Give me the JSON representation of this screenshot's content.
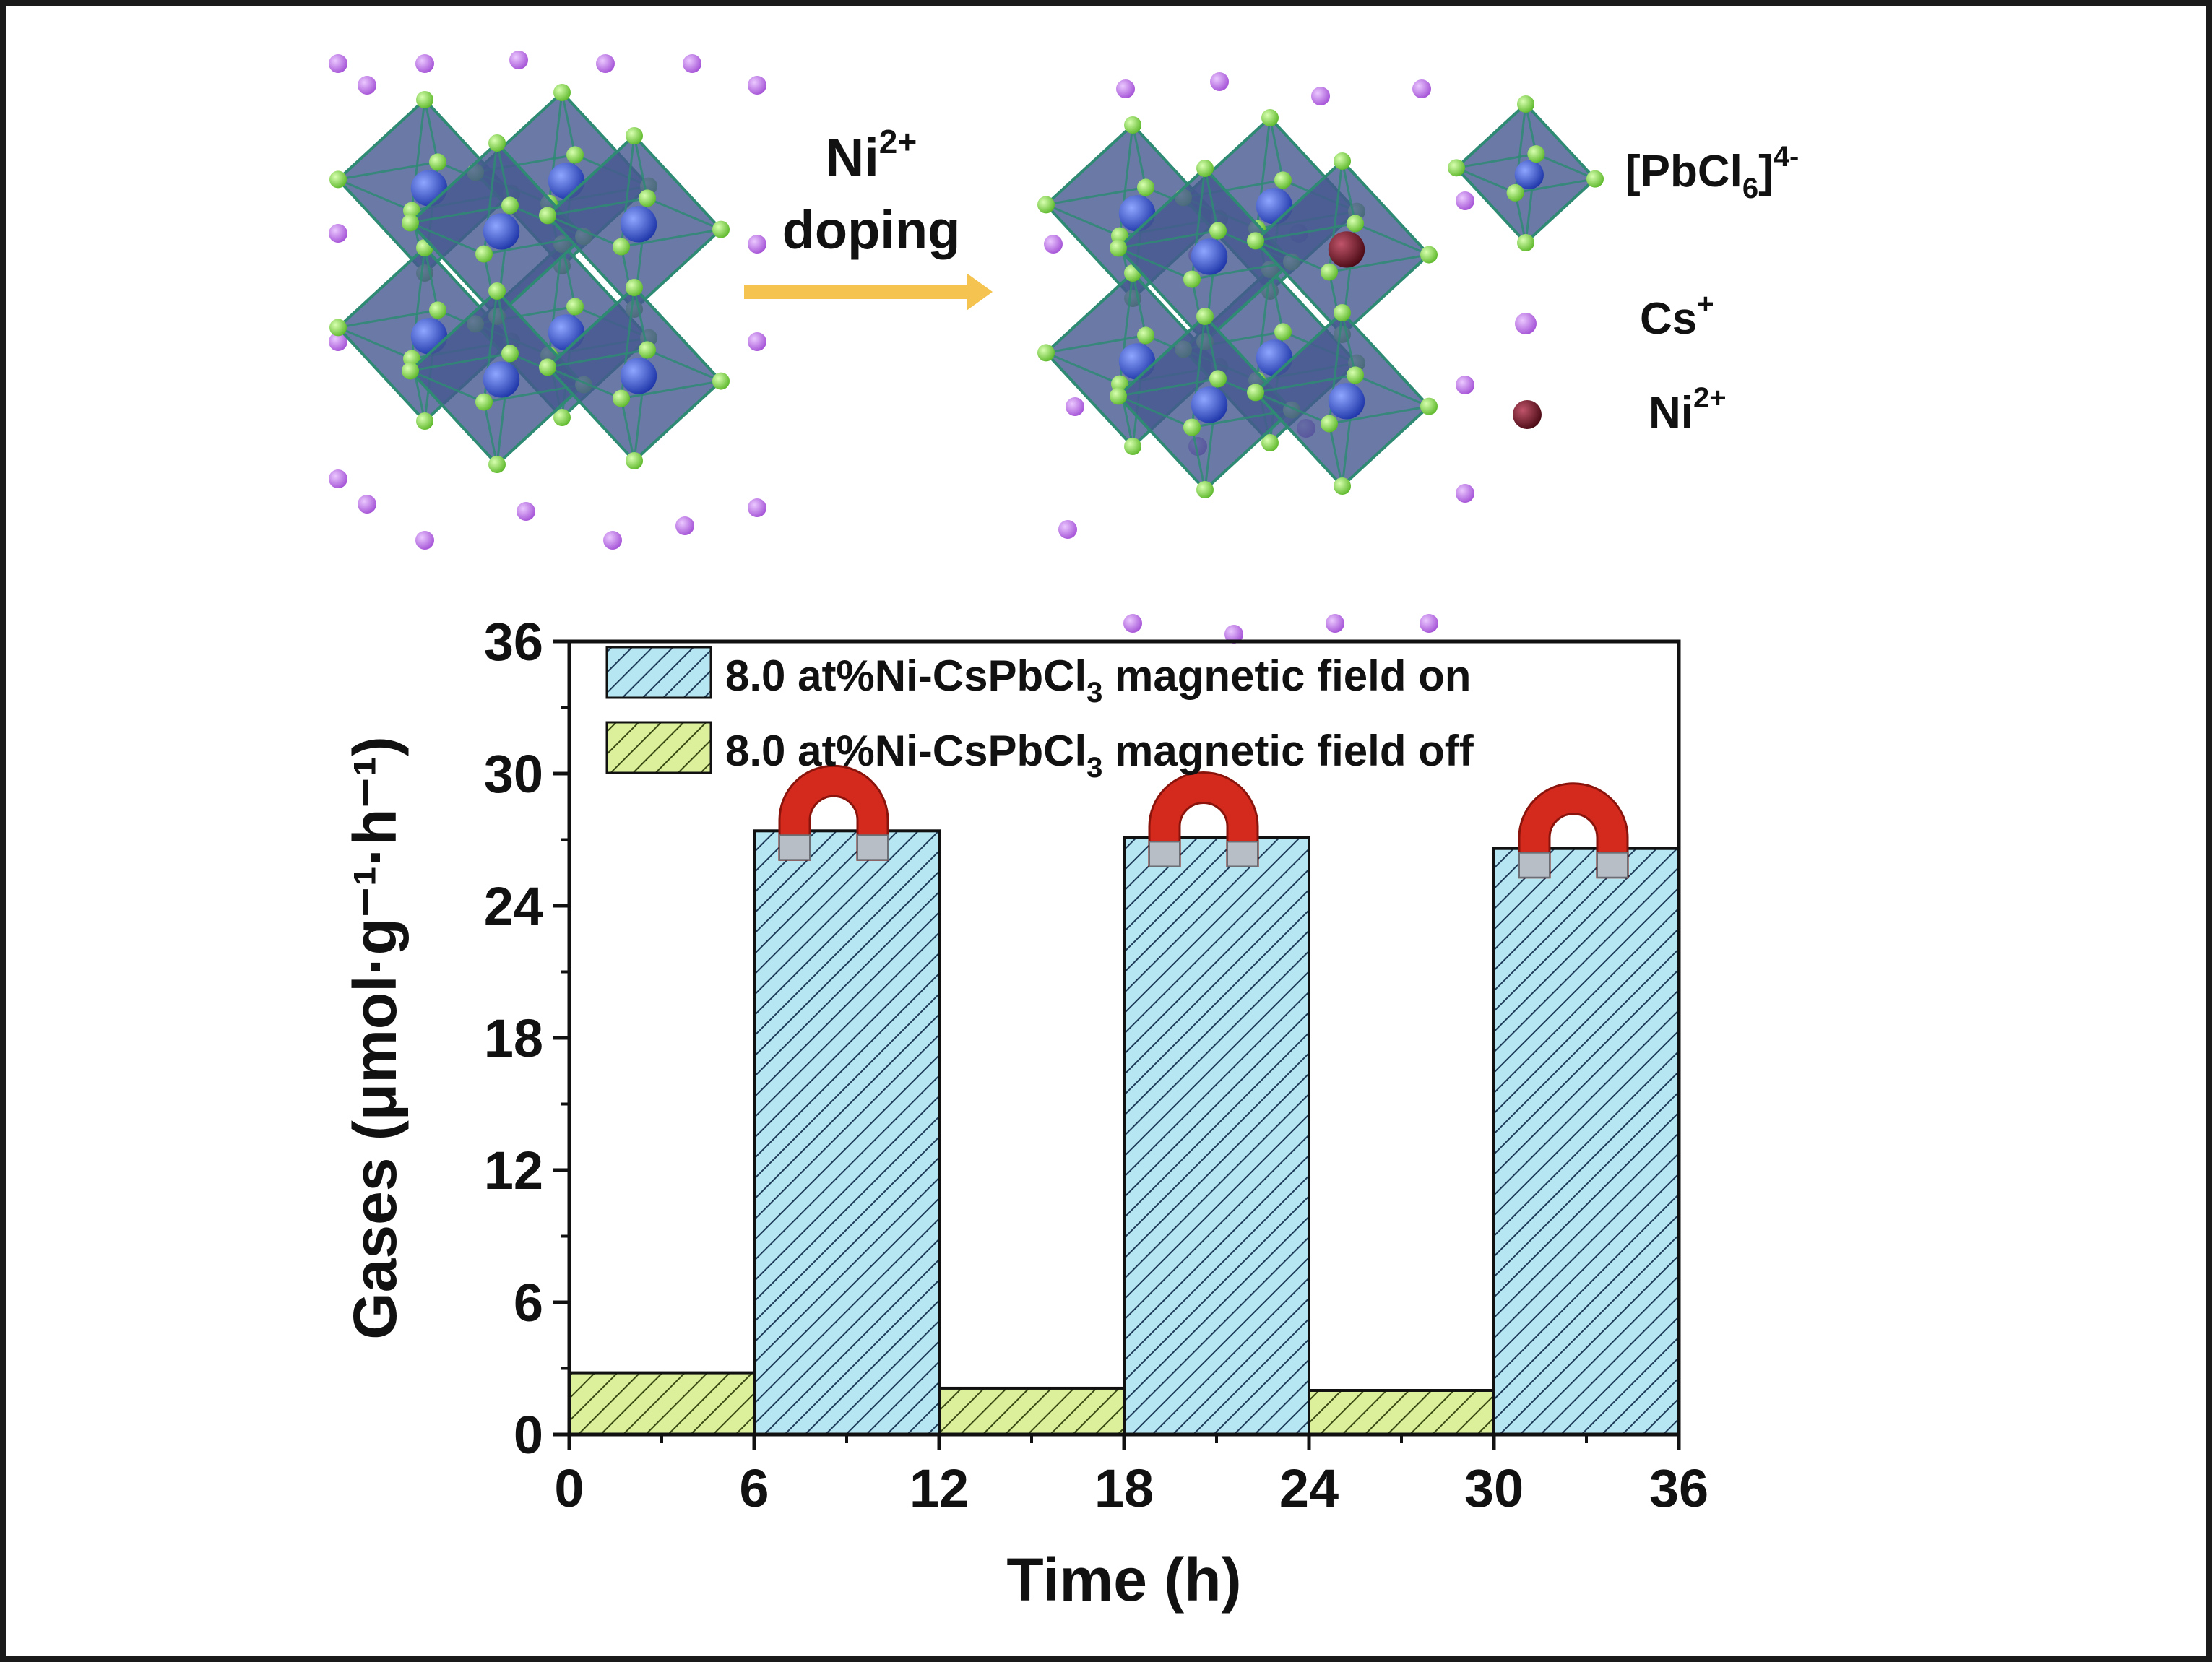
{
  "scheme": {
    "arrow_label_line1": "Ni",
    "arrow_label_line1_sup": "2+",
    "arrow_label_line2": "doping",
    "legend": [
      {
        "label": "[PbCl",
        "sub": "6",
        "sup": "4-",
        "icon": "octahedron-icon"
      },
      {
        "label": "Cs",
        "sup": "+",
        "icon": "cs-ion-dot-icon"
      },
      {
        "label": "Ni",
        "sup": "2+",
        "icon": "ni-ion-dot-icon"
      }
    ],
    "colors": {
      "arrow": "#F5C350",
      "octahedron": "#45588F",
      "edge": "#2F8A74",
      "cl": "#8CE04A",
      "pb": "#2F52D6",
      "cs": "#BB6AE6",
      "ni": "#6E1422"
    }
  },
  "chart_data": {
    "type": "bar",
    "xlabel": "Time (h)",
    "ylabel": "Gases (μmol·g⁻¹·h⁻¹)",
    "xlim": [
      0,
      36
    ],
    "ylim": [
      0,
      36
    ],
    "xticks": [
      "0",
      "6",
      "12",
      "18",
      "24",
      "30",
      "36"
    ],
    "yticks": [
      "0",
      "6",
      "12",
      "18",
      "24",
      "30",
      "36"
    ],
    "grid": false,
    "legend_position": "top-left",
    "series": [
      {
        "name_main": "8.0 at%Ni-CsPbCl",
        "name_sub": "3",
        "name_tail": " magnetic field on",
        "color": "#B6E6F2",
        "hatch_color": "#1E3C5A",
        "bars": [
          {
            "x0": 6,
            "x1": 12,
            "value": 27.4
          },
          {
            "x0": 18,
            "x1": 24,
            "value": 27.1
          },
          {
            "x0": 30,
            "x1": 36,
            "value": 26.6
          }
        ]
      },
      {
        "name_main": "8.0 at%Ni-CsPbCl",
        "name_sub": "3",
        "name_tail": " magnetic field off",
        "color": "#DCEF9A",
        "hatch_color": "#3A4A14",
        "bars": [
          {
            "x0": 0,
            "x1": 6,
            "value": 2.8
          },
          {
            "x0": 12,
            "x1": 18,
            "value": 2.1
          },
          {
            "x0": 24,
            "x1": 30,
            "value": 2.0
          }
        ]
      }
    ],
    "annotations": [
      "magnet-icon",
      "magnet-icon",
      "magnet-icon"
    ]
  }
}
